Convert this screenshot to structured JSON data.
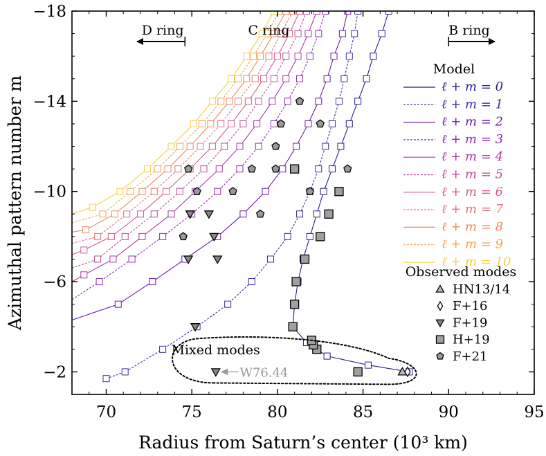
{
  "chart_data": {
    "type": "line",
    "xlabel": "Radius from Saturn’s center (10³ km)",
    "ylabel": "Azimuthal pattern number m",
    "xlim": [
      68,
      95
    ],
    "ylim": [
      -1,
      -18
    ],
    "xticks": [
      70,
      75,
      80,
      85,
      90,
      95
    ],
    "yticks": [
      -2,
      -6,
      -10,
      -14,
      -18
    ],
    "xtick_labels": [
      "70",
      "75",
      "80",
      "85",
      "90",
      "95"
    ],
    "ytick_labels": [
      "−2",
      "−6",
      "−10",
      "−14",
      "−18"
    ],
    "grid": false,
    "legend_placement": "right",
    "region_labels": [
      {
        "text": "D ring",
        "arrow": "left",
        "x_data": 74.6
      },
      {
        "text": "C ring",
        "arrow": "none",
        "x_data": 79.5
      },
      {
        "text": "B ring",
        "arrow": "right",
        "x_data": 92.0
      }
    ],
    "legend": {
      "model_title": "Model",
      "observed_title": "Observed modes"
    },
    "model_series": [
      {
        "name": "ℓ + m = 0",
        "color": "#1f1f8c",
        "dash": false,
        "points": [
          [
            87.7,
            -2
          ],
          [
            85.3,
            -2.3
          ],
          [
            82.9,
            -2.7
          ],
          [
            81.7,
            -3.3
          ],
          [
            80.9,
            -4
          ],
          [
            81.0,
            -5
          ],
          [
            81.2,
            -6
          ],
          [
            81.5,
            -7
          ],
          [
            81.9,
            -8
          ],
          [
            82.3,
            -9
          ],
          [
            82.7,
            -10
          ],
          [
            83.2,
            -11
          ],
          [
            83.7,
            -12
          ],
          [
            84.2,
            -13
          ],
          [
            84.7,
            -14
          ],
          [
            85.2,
            -15
          ],
          [
            85.6,
            -16
          ],
          [
            86.1,
            -17
          ],
          [
            86.5,
            -18
          ]
        ]
      },
      {
        "name": "ℓ + m = 1",
        "color": "#3b2ba6",
        "dash": true,
        "points": [
          [
            70.0,
            -1.7
          ],
          [
            71.1,
            -2
          ],
          [
            73.3,
            -3
          ],
          [
            75.3,
            -4
          ],
          [
            77.1,
            -5
          ],
          [
            78.5,
            -6
          ],
          [
            79.6,
            -7
          ],
          [
            80.6,
            -8
          ],
          [
            81.3,
            -9
          ],
          [
            81.9,
            -10
          ],
          [
            82.4,
            -11
          ],
          [
            82.8,
            -12
          ],
          [
            83.2,
            -13
          ],
          [
            83.6,
            -14
          ],
          [
            83.9,
            -15
          ],
          [
            84.2,
            -16
          ],
          [
            84.5,
            -17
          ],
          [
            84.7,
            -18
          ]
        ]
      },
      {
        "name": "ℓ + m = 2",
        "color": "#6a1ba8",
        "dash": false,
        "points": [
          [
            68.0,
            -4.3
          ],
          [
            70.7,
            -5
          ],
          [
            72.7,
            -6
          ],
          [
            74.6,
            -7
          ],
          [
            76.5,
            -8
          ],
          [
            78.0,
            -9
          ],
          [
            79.3,
            -10
          ],
          [
            80.3,
            -11
          ],
          [
            81.1,
            -12
          ],
          [
            81.8,
            -13
          ],
          [
            82.4,
            -14
          ],
          [
            82.9,
            -15
          ],
          [
            83.3,
            -16
          ],
          [
            83.8,
            -17
          ],
          [
            84.1,
            -18
          ]
        ]
      },
      {
        "name": "ℓ + m = 3",
        "color": "#8a2bb4",
        "dash": true,
        "points": [
          [
            68.0,
            -5.2
          ],
          [
            69.6,
            -6
          ],
          [
            71.5,
            -7
          ],
          [
            73.3,
            -8
          ],
          [
            75.0,
            -9
          ],
          [
            76.5,
            -10
          ],
          [
            77.8,
            -11
          ],
          [
            78.9,
            -12
          ],
          [
            79.8,
            -13
          ],
          [
            80.6,
            -14
          ],
          [
            81.3,
            -15
          ],
          [
            81.9,
            -16
          ],
          [
            82.4,
            -17
          ],
          [
            82.8,
            -18
          ]
        ]
      },
      {
        "name": "ℓ + m = 4",
        "color": "#a73aa6",
        "dash": false,
        "points": [
          [
            68.0,
            -6.0
          ],
          [
            68.7,
            -6.3
          ],
          [
            70.4,
            -7
          ],
          [
            72.1,
            -8
          ],
          [
            73.8,
            -9
          ],
          [
            75.2,
            -10
          ],
          [
            76.6,
            -11
          ],
          [
            77.8,
            -12
          ],
          [
            78.8,
            -13
          ],
          [
            79.7,
            -14
          ],
          [
            80.5,
            -15
          ],
          [
            81.2,
            -16
          ],
          [
            81.8,
            -17
          ],
          [
            82.3,
            -18
          ]
        ]
      },
      {
        "name": "ℓ + m = 5",
        "color": "#c04a98",
        "dash": true,
        "points": [
          [
            68.0,
            -6.6
          ],
          [
            69.5,
            -7
          ],
          [
            71.1,
            -8
          ],
          [
            72.8,
            -9
          ],
          [
            74.3,
            -10
          ],
          [
            75.7,
            -11
          ],
          [
            76.9,
            -12
          ],
          [
            78.0,
            -13
          ],
          [
            78.9,
            -14
          ],
          [
            79.8,
            -15
          ],
          [
            80.5,
            -16
          ],
          [
            81.2,
            -17
          ],
          [
            81.7,
            -18
          ]
        ]
      },
      {
        "name": "ℓ + m = 6",
        "color": "#d75c88",
        "dash": false,
        "points": [
          [
            68.0,
            -7.2
          ],
          [
            68.7,
            -7.4
          ],
          [
            70.3,
            -8
          ],
          [
            72.0,
            -9
          ],
          [
            73.5,
            -10
          ],
          [
            74.9,
            -11
          ],
          [
            76.2,
            -12
          ],
          [
            77.3,
            -13
          ],
          [
            78.3,
            -14
          ],
          [
            79.2,
            -15
          ],
          [
            80.0,
            -16
          ],
          [
            80.7,
            -17
          ],
          [
            81.3,
            -18
          ]
        ]
      },
      {
        "name": "ℓ + m = 7",
        "color": "#e87078",
        "dash": true,
        "points": [
          [
            68.0,
            -7.7
          ],
          [
            69.5,
            -8
          ],
          [
            71.2,
            -9
          ],
          [
            72.8,
            -10
          ],
          [
            74.2,
            -11
          ],
          [
            75.5,
            -12
          ],
          [
            76.7,
            -13
          ],
          [
            77.7,
            -14
          ],
          [
            78.7,
            -15
          ],
          [
            79.5,
            -16
          ],
          [
            80.2,
            -17
          ],
          [
            80.9,
            -18
          ]
        ]
      },
      {
        "name": "ℓ + m = 8",
        "color": "#f0885e",
        "dash": false,
        "points": [
          [
            68.0,
            -8.2
          ],
          [
            68.8,
            -8.3
          ],
          [
            70.5,
            -9
          ],
          [
            72.1,
            -10
          ],
          [
            73.6,
            -11
          ],
          [
            74.9,
            -12
          ],
          [
            76.1,
            -13
          ],
          [
            77.2,
            -14
          ],
          [
            78.2,
            -15
          ],
          [
            79.0,
            -16
          ],
          [
            79.8,
            -17
          ],
          [
            80.5,
            -18
          ]
        ]
      },
      {
        "name": "ℓ + m = 9",
        "color": "#f5a44a",
        "dash": true,
        "points": [
          [
            68.0,
            -8.6
          ],
          [
            69.8,
            -9
          ],
          [
            71.4,
            -10
          ],
          [
            73.0,
            -11
          ],
          [
            74.3,
            -12
          ],
          [
            75.6,
            -13
          ],
          [
            76.7,
            -14
          ],
          [
            77.7,
            -15
          ],
          [
            78.6,
            -16
          ],
          [
            79.4,
            -17
          ],
          [
            80.1,
            -18
          ]
        ]
      },
      {
        "name": "ℓ + m = 10",
        "color": "#f5d23c",
        "dash": false,
        "points": [
          [
            68.0,
            -9.0
          ],
          [
            69.2,
            -9.3
          ],
          [
            70.8,
            -10
          ],
          [
            72.4,
            -11
          ],
          [
            73.8,
            -12
          ],
          [
            75.1,
            -13
          ],
          [
            76.2,
            -14
          ],
          [
            77.3,
            -15
          ],
          [
            78.2,
            -16
          ],
          [
            79.1,
            -17
          ],
          [
            79.8,
            -18
          ]
        ]
      }
    ],
    "observed_series": [
      {
        "name": "HN13/14",
        "marker": "triangle-up",
        "fill": "#bbbbbb",
        "points": [
          [
            87.3,
            -2
          ]
        ]
      },
      {
        "name": "F+16",
        "marker": "diamond",
        "fill": "#ffffff",
        "points": [
          [
            87.6,
            -2
          ]
        ]
      },
      {
        "name": "F+19",
        "marker": "triangle-down",
        "fill": "#888888",
        "points": [
          [
            76.4,
            -2
          ],
          [
            75.2,
            -4
          ],
          [
            74.8,
            -7
          ],
          [
            76.5,
            -7
          ],
          [
            76.3,
            -8
          ],
          [
            74.9,
            -9
          ],
          [
            76.0,
            -9
          ]
        ]
      },
      {
        "name": "H+19",
        "marker": "square",
        "fill": "#a0a0a0",
        "points": [
          [
            84.7,
            -2
          ],
          [
            82.3,
            -3
          ],
          [
            82.1,
            -3.2
          ],
          [
            82.0,
            -3.4
          ],
          [
            80.9,
            -4
          ],
          [
            81.0,
            -5
          ],
          [
            81.1,
            -6
          ],
          [
            81.6,
            -7
          ],
          [
            82.5,
            -8
          ],
          [
            83.0,
            -9
          ],
          [
            83.6,
            -10
          ],
          [
            81.0,
            -11
          ]
        ]
      },
      {
        "name": "F+21",
        "marker": "pentagon",
        "fill": "#9a9a9a",
        "points": [
          [
            74.5,
            -8
          ],
          [
            79.0,
            -9
          ],
          [
            75.3,
            -10
          ],
          [
            77.4,
            -10
          ],
          [
            81.9,
            -10
          ],
          [
            74.8,
            -11
          ],
          [
            78.5,
            -11
          ],
          [
            79.9,
            -11
          ],
          [
            84.1,
            -11
          ],
          [
            79.9,
            -12
          ],
          [
            80.2,
            -13
          ],
          [
            82.5,
            -13
          ],
          [
            81.3,
            -14
          ]
        ]
      }
    ],
    "annotations": [
      {
        "text": "Mixed modes",
        "x_data": 73.8,
        "y_data": -3.0
      },
      {
        "text": "W76.44",
        "x_data": 77.8,
        "y_data": -2.0,
        "color": "#999999",
        "arrow_to_x": 76.5
      }
    ]
  }
}
